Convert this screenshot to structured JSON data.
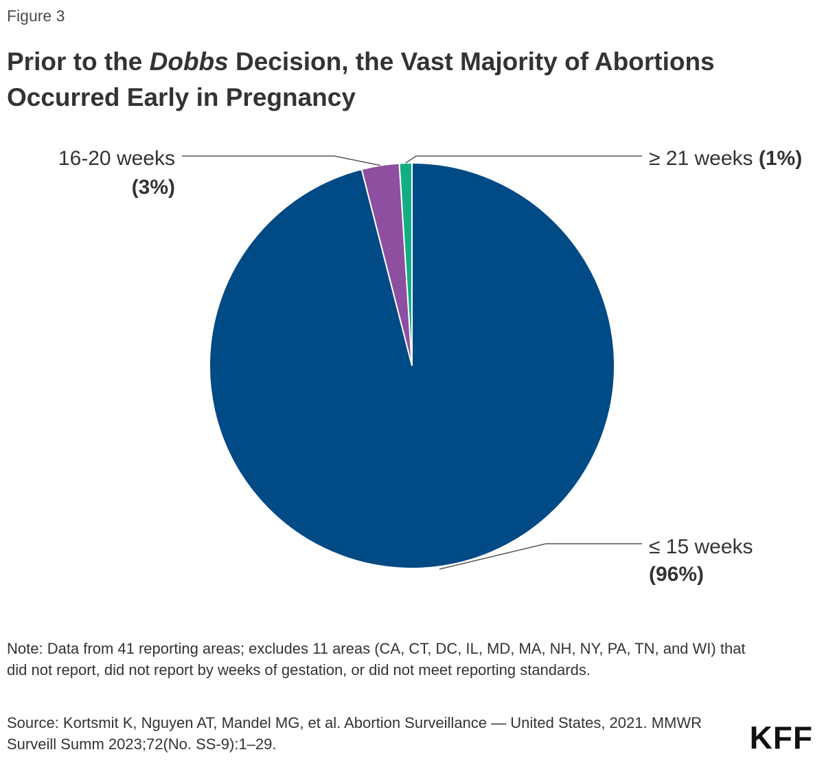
{
  "figure_label": "Figure 3",
  "title": {
    "before": "Prior to the ",
    "italic": "Dobbs",
    "after": " Decision, the Vast Majority of Abortions Occurred Early in Pregnancy"
  },
  "chart_data": {
    "type": "pie",
    "slices": [
      {
        "name": "≤ 15 weeks",
        "value": 96,
        "value_label": "(96%)",
        "color": "#004a86"
      },
      {
        "name": "16-20 weeks",
        "value": 3,
        "value_label": "(3%)",
        "color": "#8e4fa0"
      },
      {
        "name": "≥ 21 weeks",
        "value": 1,
        "value_label": "(1%)",
        "color": "#13ae84"
      }
    ]
  },
  "note": "Note: Data from 41 reporting areas; excludes 11 areas (CA, CT, DC, IL, MD, MA, NH, NY, PA, TN, and WI) that did not report, did not report by weeks of gestation, or did not meet reporting standards.",
  "source": "Source: Kortsmit K, Nguyen AT, Mandel MG, et al. Abortion Surveillance — United States, 2021. MMWR Surveill Summ 2023;72(No. SS-9):1–29.",
  "logo": "KFF"
}
